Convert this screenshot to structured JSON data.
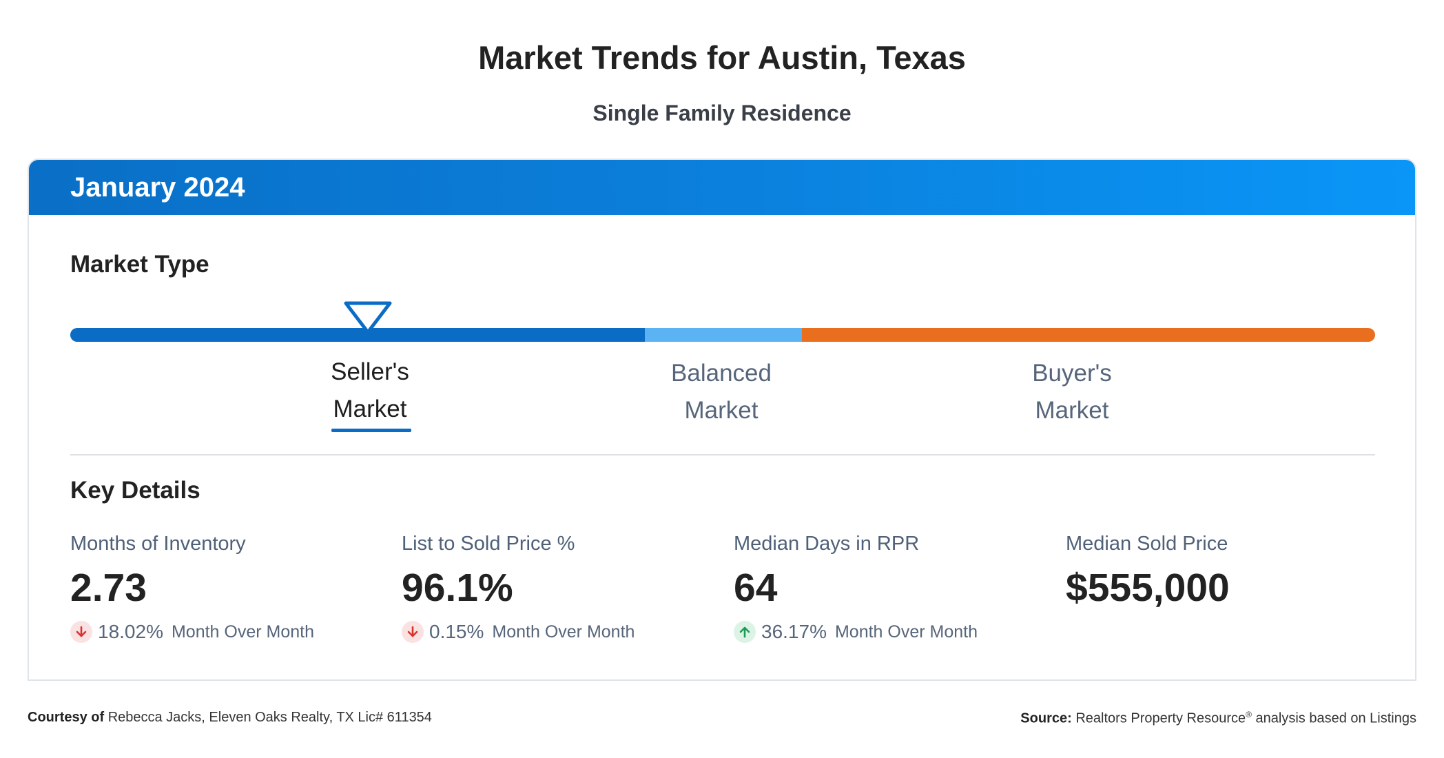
{
  "header": {
    "title": "Market Trends for Austin, Texas",
    "subtitle": "Single Family Residence"
  },
  "card": {
    "period": "January 2024",
    "market_type": {
      "title": "Market Type",
      "position_pct": 22.8,
      "segments": [
        {
          "name": "Seller's Market",
          "color": "#0a6cc4"
        },
        {
          "name": "Balanced Market",
          "color": "#5bb3f4"
        },
        {
          "name": "Buyer's Market",
          "color": "#e96e1e"
        }
      ],
      "labels": {
        "seller_line1": "Seller's",
        "seller_line2": "Market",
        "balanced_line1": "Balanced",
        "balanced_line2": "Market",
        "buyer_line1": "Buyer's",
        "buyer_line2": "Market"
      },
      "selected": "Seller's Market"
    },
    "key_details": {
      "title": "Key Details",
      "stats": [
        {
          "label": "Months of Inventory",
          "value": "2.73",
          "change_direction": "down",
          "change_pct": "18.02%",
          "change_text": "Month Over Month"
        },
        {
          "label": "List to Sold Price %",
          "value": "96.1%",
          "change_direction": "down",
          "change_pct": "0.15%",
          "change_text": "Month Over Month"
        },
        {
          "label": "Median Days in RPR",
          "value": "64",
          "change_direction": "up",
          "change_pct": "36.17%",
          "change_text": "Month Over Month"
        },
        {
          "label": "Median Sold Price",
          "value": "$555,000"
        }
      ]
    }
  },
  "footer": {
    "courtesy_label": "Courtesy of",
    "courtesy_text": "Rebecca Jacks, Eleven Oaks Realty, TX Lic# 611354",
    "source_label": "Source:",
    "source_text_1": "Realtors Property Resource",
    "source_reg": "®",
    "source_text_2": "analysis based on Listings"
  },
  "colors": {
    "header_start": "#0a6fc6",
    "header_end": "#0a96f7",
    "down_arrow": "#d9322e",
    "up_arrow": "#1e9a57"
  }
}
